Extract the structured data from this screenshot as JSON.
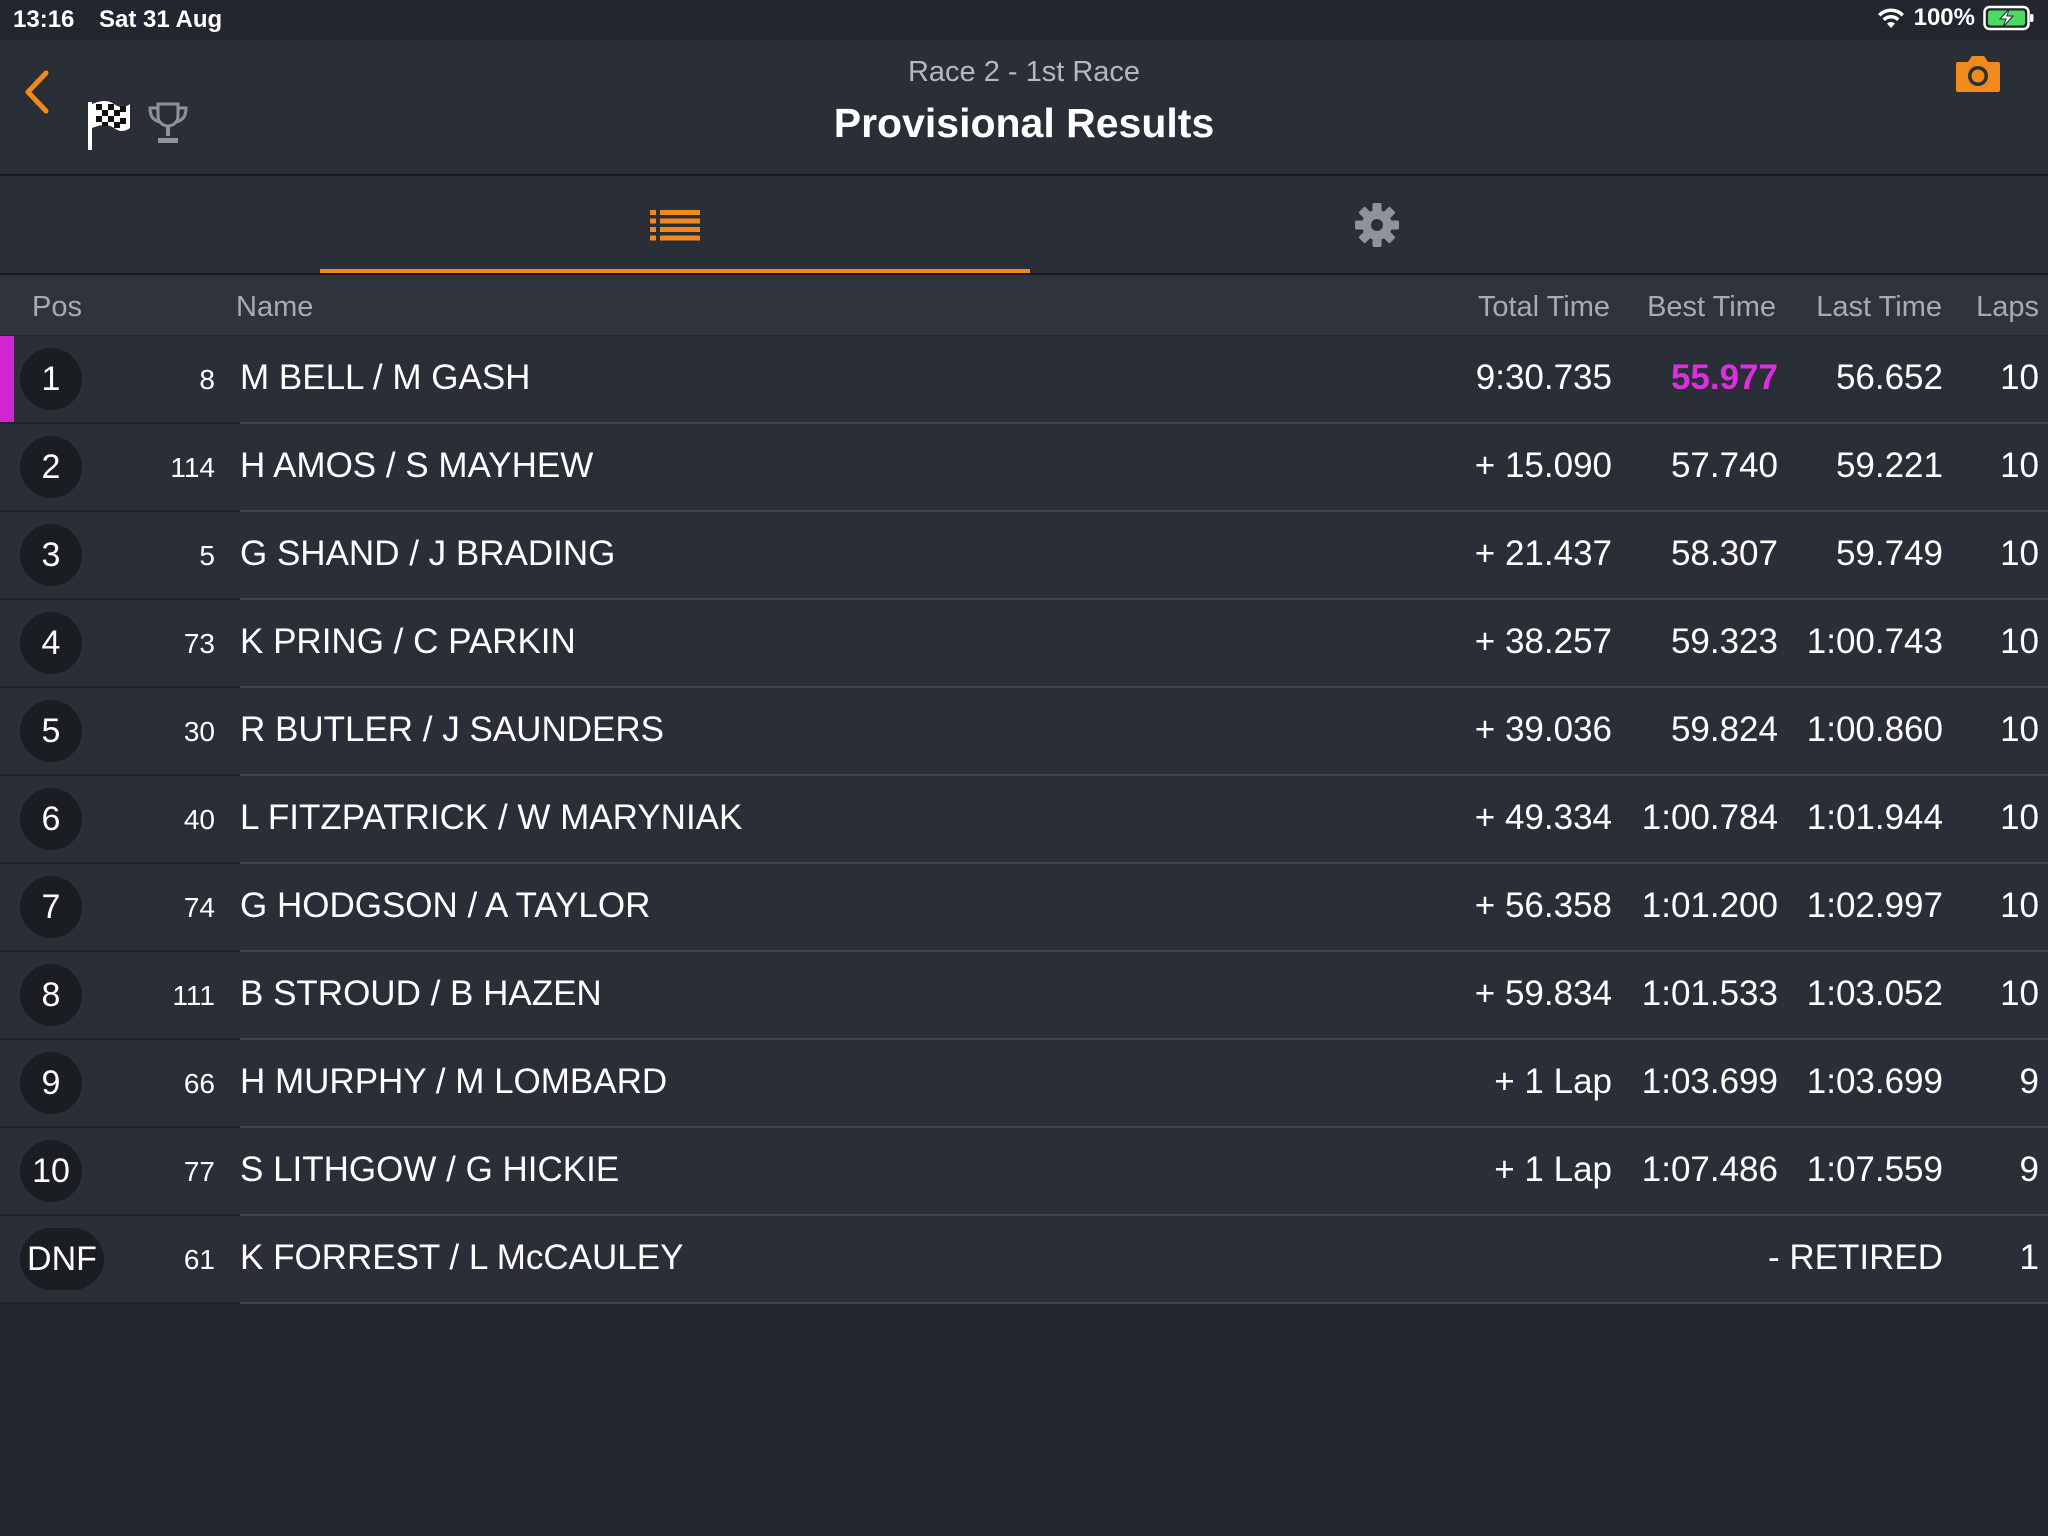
{
  "status_bar": {
    "time": "13:16",
    "date": "Sat 31 Aug",
    "battery": "100%"
  },
  "header": {
    "subtitle": "Race 2 - 1st Race",
    "title": "Provisional Results"
  },
  "icons": {
    "back": "chevron-left-icon",
    "flag": "checkered-flag-icon",
    "trophy": "trophy-icon",
    "camera": "camera-icon",
    "list": "list-icon",
    "settings": "gear-icon"
  },
  "colors": {
    "accent": "#f08a1c",
    "fastest": "#db2fe0",
    "background": "#22262e"
  },
  "columns": {
    "pos": "Pos",
    "name": "Name",
    "total": "Total Time",
    "best": "Best Time",
    "last": "Last Time",
    "laps": "Laps"
  },
  "results": [
    {
      "pos": "1",
      "num": "8",
      "name": "M BELL / M GASH",
      "total": "9:30.735",
      "best": "55.977",
      "last": "56.652",
      "laps": "10"
    },
    {
      "pos": "2",
      "num": "114",
      "name": "H AMOS / S MAYHEW",
      "total": "+ 15.090",
      "best": "57.740",
      "last": "59.221",
      "laps": "10"
    },
    {
      "pos": "3",
      "num": "5",
      "name": "G SHAND / J BRADING",
      "total": "+ 21.437",
      "best": "58.307",
      "last": "59.749",
      "laps": "10"
    },
    {
      "pos": "4",
      "num": "73",
      "name": "K PRING / C PARKIN",
      "total": "+ 38.257",
      "best": "59.323",
      "last": "1:00.743",
      "laps": "10"
    },
    {
      "pos": "5",
      "num": "30",
      "name": "R BUTLER / J SAUNDERS",
      "total": "+ 39.036",
      "best": "59.824",
      "last": "1:00.860",
      "laps": "10"
    },
    {
      "pos": "6",
      "num": "40",
      "name": "L FITZPATRICK / W MARYNIAK",
      "total": "+ 49.334",
      "best": "1:00.784",
      "last": "1:01.944",
      "laps": "10"
    },
    {
      "pos": "7",
      "num": "74",
      "name": "G HODGSON / A TAYLOR",
      "total": "+ 56.358",
      "best": "1:01.200",
      "last": "1:02.997",
      "laps": "10"
    },
    {
      "pos": "8",
      "num": "111",
      "name": "B STROUD / B HAZEN",
      "total": "+ 59.834",
      "best": "1:01.533",
      "last": "1:03.052",
      "laps": "10"
    },
    {
      "pos": "9",
      "num": "66",
      "name": "H MURPHY / M LOMBARD",
      "total": "+ 1 Lap",
      "best": "1:03.699",
      "last": "1:03.699",
      "laps": "9"
    },
    {
      "pos": "10",
      "num": "77",
      "name": "S LITHGOW / G HICKIE",
      "total": "+ 1 Lap",
      "best": "1:07.486",
      "last": "1:07.559",
      "laps": "9"
    },
    {
      "pos": "DNF",
      "num": "61",
      "name": "K FORREST / L McCAULEY",
      "total": "",
      "best": "",
      "last": "-  RETIRED",
      "laps": "1"
    }
  ]
}
